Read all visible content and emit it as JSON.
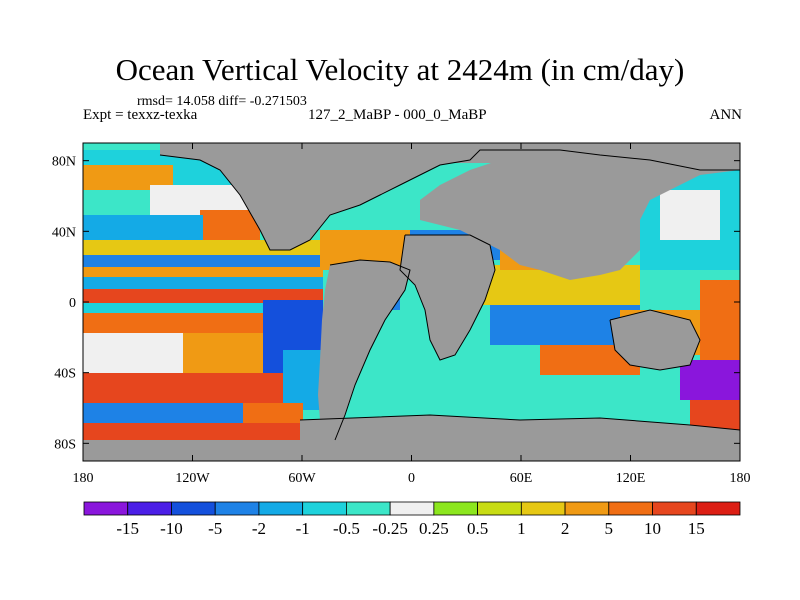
{
  "title": "Ocean Vertical Velocity at 2424m (in cm/day)",
  "stats": "rmsd= 14.058 diff= -0.271503",
  "experiment": "Expt = texxz-texka",
  "case": "127_2_MaBP - 000_0_MaBP",
  "season": "ANN",
  "x_ticks": [
    "180",
    "120W",
    "60W",
    "0",
    "60E",
    "120E",
    "180"
  ],
  "y_ticks": [
    "80N",
    "40N",
    "0",
    "40S",
    "80S"
  ],
  "colorbar": {
    "labels": [
      "-15",
      "-10",
      "-5",
      "-2",
      "-1",
      "-0.5",
      "-0.25",
      "0.25",
      "0.5",
      "1",
      "2",
      "5",
      "10",
      "15"
    ],
    "colors": [
      "#8a16dc",
      "#4b1ee6",
      "#1450dc",
      "#1e82e6",
      "#14aae6",
      "#1ed2dc",
      "#3ce6c8",
      "#f0f0f0",
      "#8ce61e",
      "#c8dc14",
      "#e6c814",
      "#f09a14",
      "#f06e14",
      "#e6461e",
      "#dc1e14"
    ]
  },
  "colors": {
    "land": "#9a9a9a",
    "coast": "#000000"
  }
}
